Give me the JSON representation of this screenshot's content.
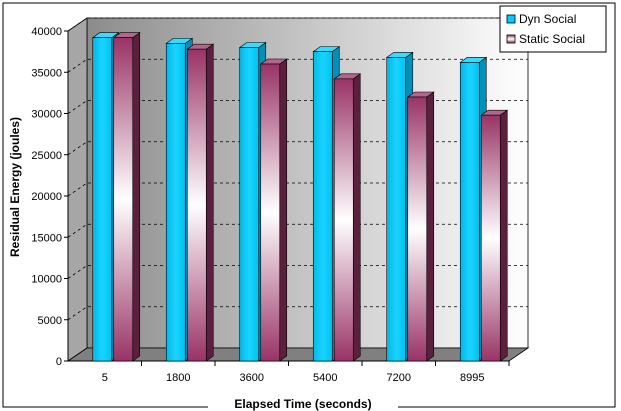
{
  "chart_data": {
    "type": "bar",
    "subtype": "3d-clustered-column",
    "categories": [
      "5",
      "1800",
      "3600",
      "5400",
      "7200",
      "8995"
    ],
    "series": [
      {
        "name": "Dyn Social",
        "values": [
          39200,
          38500,
          38000,
          37500,
          36800,
          36200
        ],
        "color": "#00ccff"
      },
      {
        "name": "Static Social",
        "values": [
          39200,
          37800,
          36000,
          34200,
          32000,
          29800
        ],
        "color": "#993366"
      }
    ],
    "xlabel": "Elapsed Time (seconds)",
    "ylabel": "Residual Energy (joules)",
    "ylim": [
      0,
      40000
    ],
    "yticks": [
      "0",
      "5000",
      "10000",
      "15000",
      "20000",
      "25000",
      "30000",
      "35000",
      "40000"
    ],
    "grid": true,
    "legend_position": "top-right",
    "colors": {
      "wall": "#c0c0c0",
      "floor": "#808080",
      "gridline": "#000000"
    }
  }
}
